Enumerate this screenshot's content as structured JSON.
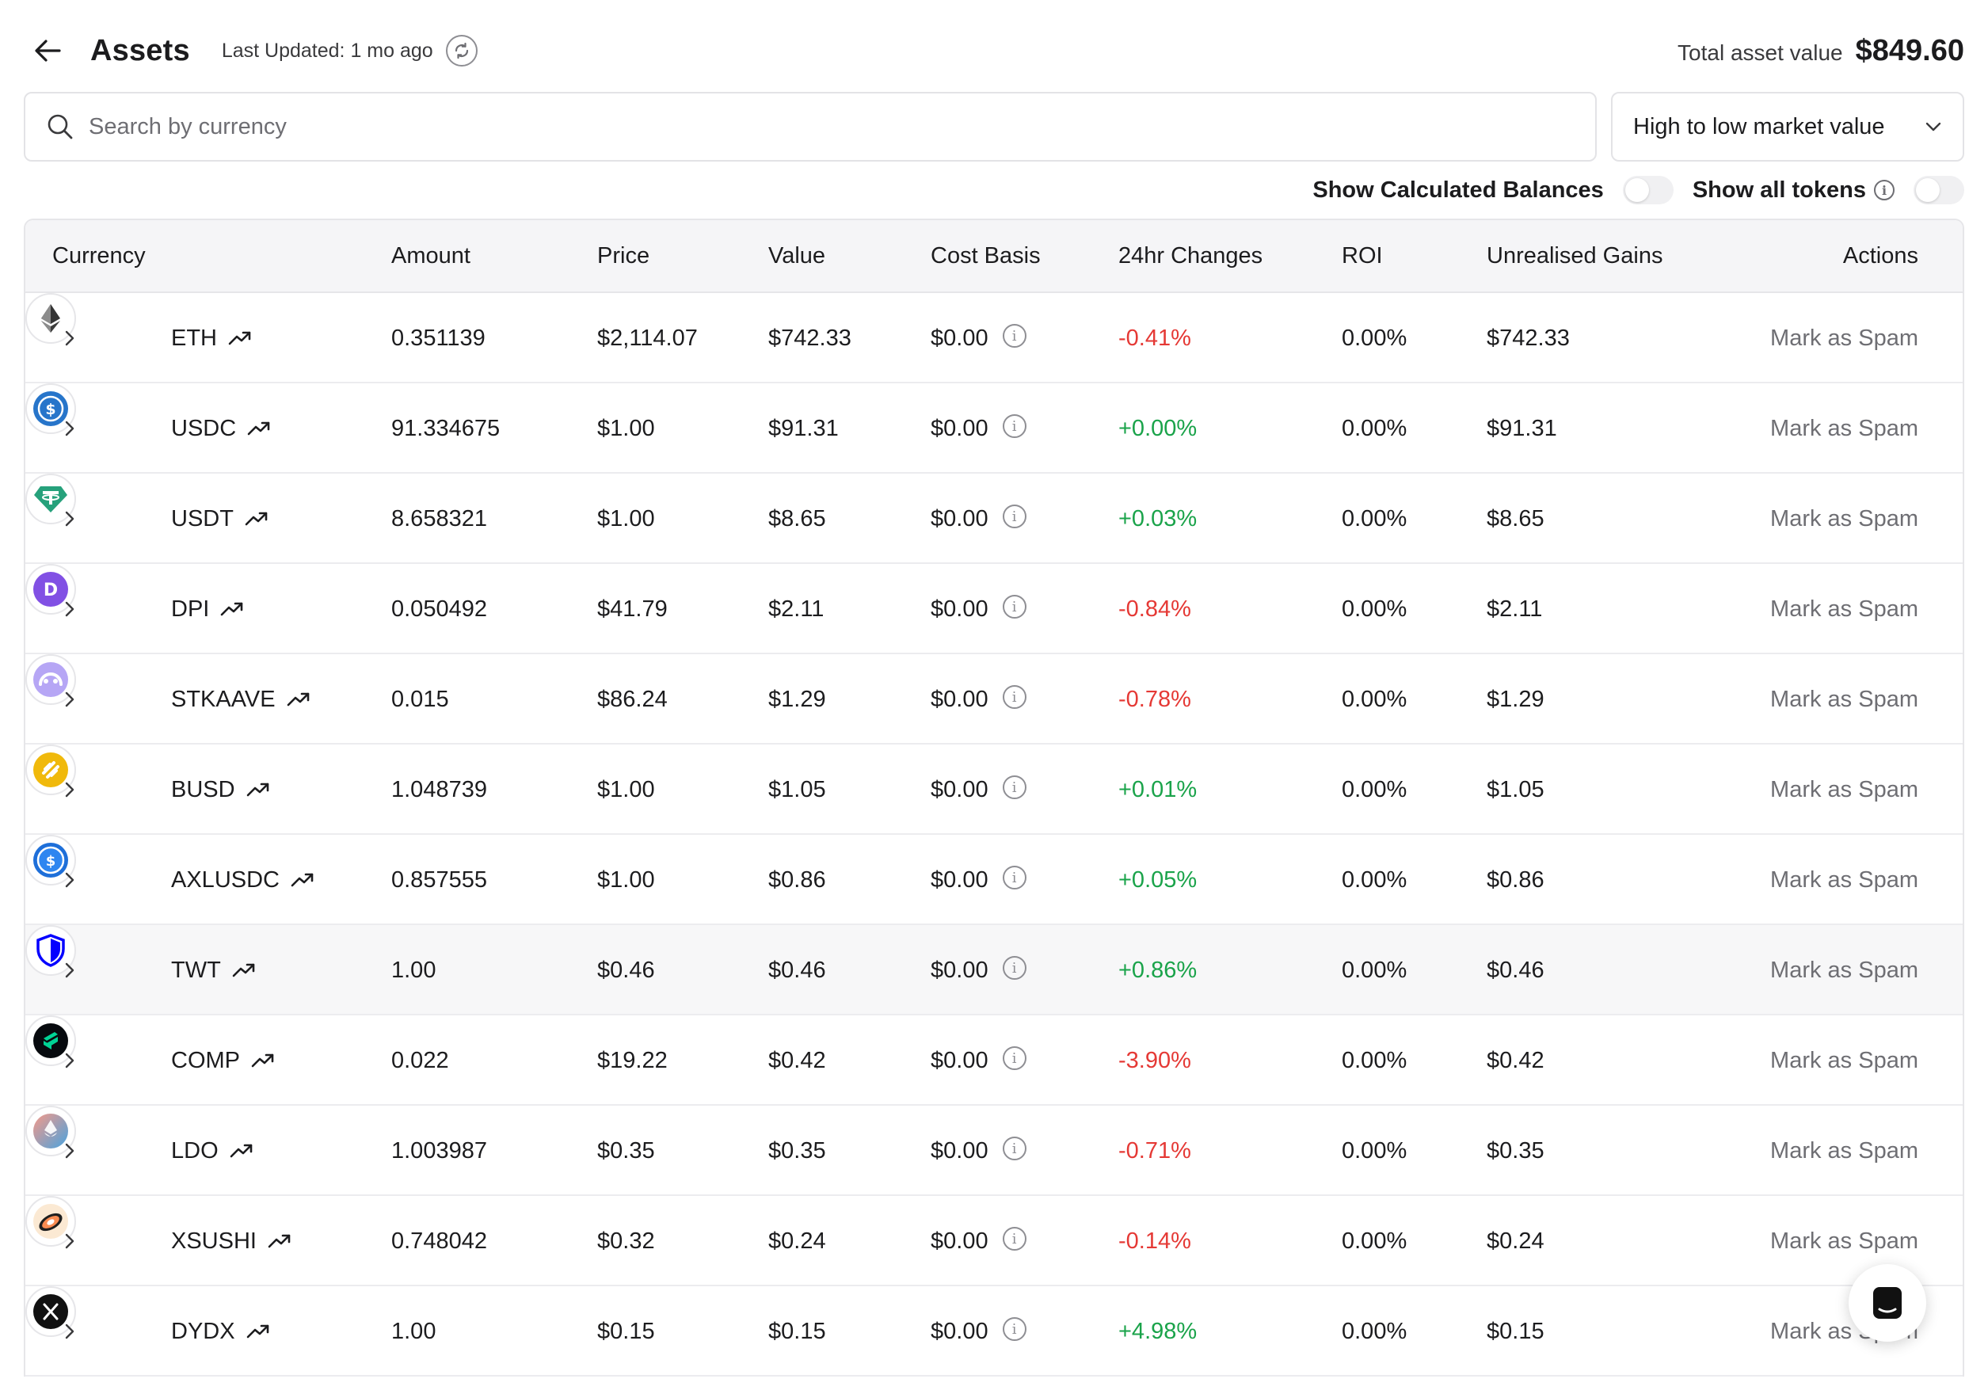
{
  "header": {
    "title": "Assets",
    "last_updated": "Last Updated: 1 mo ago",
    "total_label": "Total asset value",
    "total_value": "$849.60"
  },
  "search": {
    "placeholder": "Search by currency",
    "value": ""
  },
  "sort": {
    "selected": "High to low market value"
  },
  "toggles": {
    "calculated_balances": "Show Calculated Balances",
    "all_tokens": "Show all tokens"
  },
  "columns": {
    "currency": "Currency",
    "amount": "Amount",
    "price": "Price",
    "value": "Value",
    "cost_basis": "Cost Basis",
    "change_24h": "24hr Changes",
    "roi": "ROI",
    "unrealised": "Unrealised Gains",
    "actions": "Actions"
  },
  "rows": [
    {
      "symbol": "ETH",
      "amount": "0.351139",
      "price": "$2,114.07",
      "value": "$742.33",
      "cost": "$0.00",
      "change": "-0.41%",
      "roi": "0.00%",
      "gain": "$742.33",
      "action": "Mark as Spam",
      "icon": "eth-icon",
      "trend": "up"
    },
    {
      "symbol": "USDC",
      "amount": "91.334675",
      "price": "$1.00",
      "value": "$91.31",
      "cost": "$0.00",
      "change": "+0.00%",
      "roi": "0.00%",
      "gain": "$91.31",
      "action": "Mark as Spam",
      "icon": "usdc-icon",
      "trend": "up"
    },
    {
      "symbol": "USDT",
      "amount": "8.658321",
      "price": "$1.00",
      "value": "$8.65",
      "cost": "$0.00",
      "change": "+0.03%",
      "roi": "0.00%",
      "gain": "$8.65",
      "action": "Mark as Spam",
      "icon": "usdt-icon",
      "trend": "up"
    },
    {
      "symbol": "DPI",
      "amount": "0.050492",
      "price": "$41.79",
      "value": "$2.11",
      "cost": "$0.00",
      "change": "-0.84%",
      "roi": "0.00%",
      "gain": "$2.11",
      "action": "Mark as Spam",
      "icon": "dpi-icon",
      "trend": "up"
    },
    {
      "symbol": "STKAAVE",
      "amount": "0.015",
      "price": "$86.24",
      "value": "$1.29",
      "cost": "$0.00",
      "change": "-0.78%",
      "roi": "0.00%",
      "gain": "$1.29",
      "action": "Mark as Spam",
      "icon": "stkaave-icon",
      "trend": "up"
    },
    {
      "symbol": "BUSD",
      "amount": "1.048739",
      "price": "$1.00",
      "value": "$1.05",
      "cost": "$0.00",
      "change": "+0.01%",
      "roi": "0.00%",
      "gain": "$1.05",
      "action": "Mark as Spam",
      "icon": "busd-icon",
      "trend": "up"
    },
    {
      "symbol": "AXLUSDC",
      "amount": "0.857555",
      "price": "$1.00",
      "value": "$0.86",
      "cost": "$0.00",
      "change": "+0.05%",
      "roi": "0.00%",
      "gain": "$0.86",
      "action": "Mark as Spam",
      "icon": "axlusdc-icon",
      "trend": "up"
    },
    {
      "symbol": "TWT",
      "amount": "1.00",
      "price": "$0.46",
      "value": "$0.46",
      "cost": "$0.00",
      "change": "+0.86%",
      "roi": "0.00%",
      "gain": "$0.46",
      "action": "Mark as Spam",
      "icon": "twt-icon",
      "trend": "up"
    },
    {
      "symbol": "COMP",
      "amount": "0.022",
      "price": "$19.22",
      "value": "$0.42",
      "cost": "$0.00",
      "change": "-3.90%",
      "roi": "0.00%",
      "gain": "$0.42",
      "action": "Mark as Spam",
      "icon": "comp-icon",
      "trend": "up"
    },
    {
      "symbol": "LDO",
      "amount": "1.003987",
      "price": "$0.35",
      "value": "$0.35",
      "cost": "$0.00",
      "change": "-0.71%",
      "roi": "0.00%",
      "gain": "$0.35",
      "action": "Mark as Spam",
      "icon": "ldo-icon",
      "trend": "up"
    },
    {
      "symbol": "XSUSHI",
      "amount": "0.748042",
      "price": "$0.32",
      "value": "$0.24",
      "cost": "$0.00",
      "change": "-0.14%",
      "roi": "0.00%",
      "gain": "$0.24",
      "action": "Mark as Spam",
      "icon": "xsushi-icon",
      "trend": "up"
    },
    {
      "symbol": "DYDX",
      "amount": "1.00",
      "price": "$0.15",
      "value": "$0.15",
      "cost": "$0.00",
      "change": "+4.98%",
      "roi": "0.00%",
      "gain": "$0.15",
      "action": "Mark as Spam",
      "icon": "dydx-icon",
      "trend": "up"
    }
  ],
  "colors": {
    "positive": "#1aa34a",
    "negative": "#e53935"
  }
}
